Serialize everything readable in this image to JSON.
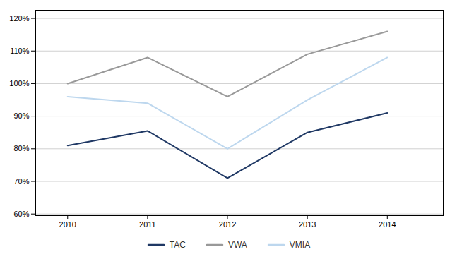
{
  "chart_data": {
    "type": "line",
    "x": [
      2010,
      2011,
      2012,
      2013,
      2014
    ],
    "series": [
      {
        "name": "TAC",
        "color": "#1f3864",
        "values": [
          0.81,
          0.855,
          0.71,
          0.85,
          0.91
        ]
      },
      {
        "name": "VWA",
        "color": "#999999",
        "values": [
          1.0,
          1.08,
          0.96,
          1.09,
          1.16
        ]
      },
      {
        "name": "VMIA",
        "color": "#bdd7ee",
        "values": [
          0.96,
          0.94,
          0.8,
          0.95,
          1.08
        ]
      }
    ],
    "xlim": [
      2009.6,
      2014.7
    ],
    "xticks": [
      2010,
      2011,
      2012,
      2013,
      2014
    ],
    "ylim": [
      0.595,
      1.225
    ],
    "yticks": [
      {
        "value": 0.6,
        "label": "60%"
      },
      {
        "value": 0.7,
        "label": "70%"
      },
      {
        "value": 0.8,
        "label": "80%"
      },
      {
        "value": 0.9,
        "label": "90%"
      },
      {
        "value": 1.0,
        "label": "100%"
      },
      {
        "value": 1.1,
        "label": "110%"
      },
      {
        "value": 1.2,
        "label": "120%"
      }
    ],
    "grid": "y",
    "legend": "bottom"
  }
}
